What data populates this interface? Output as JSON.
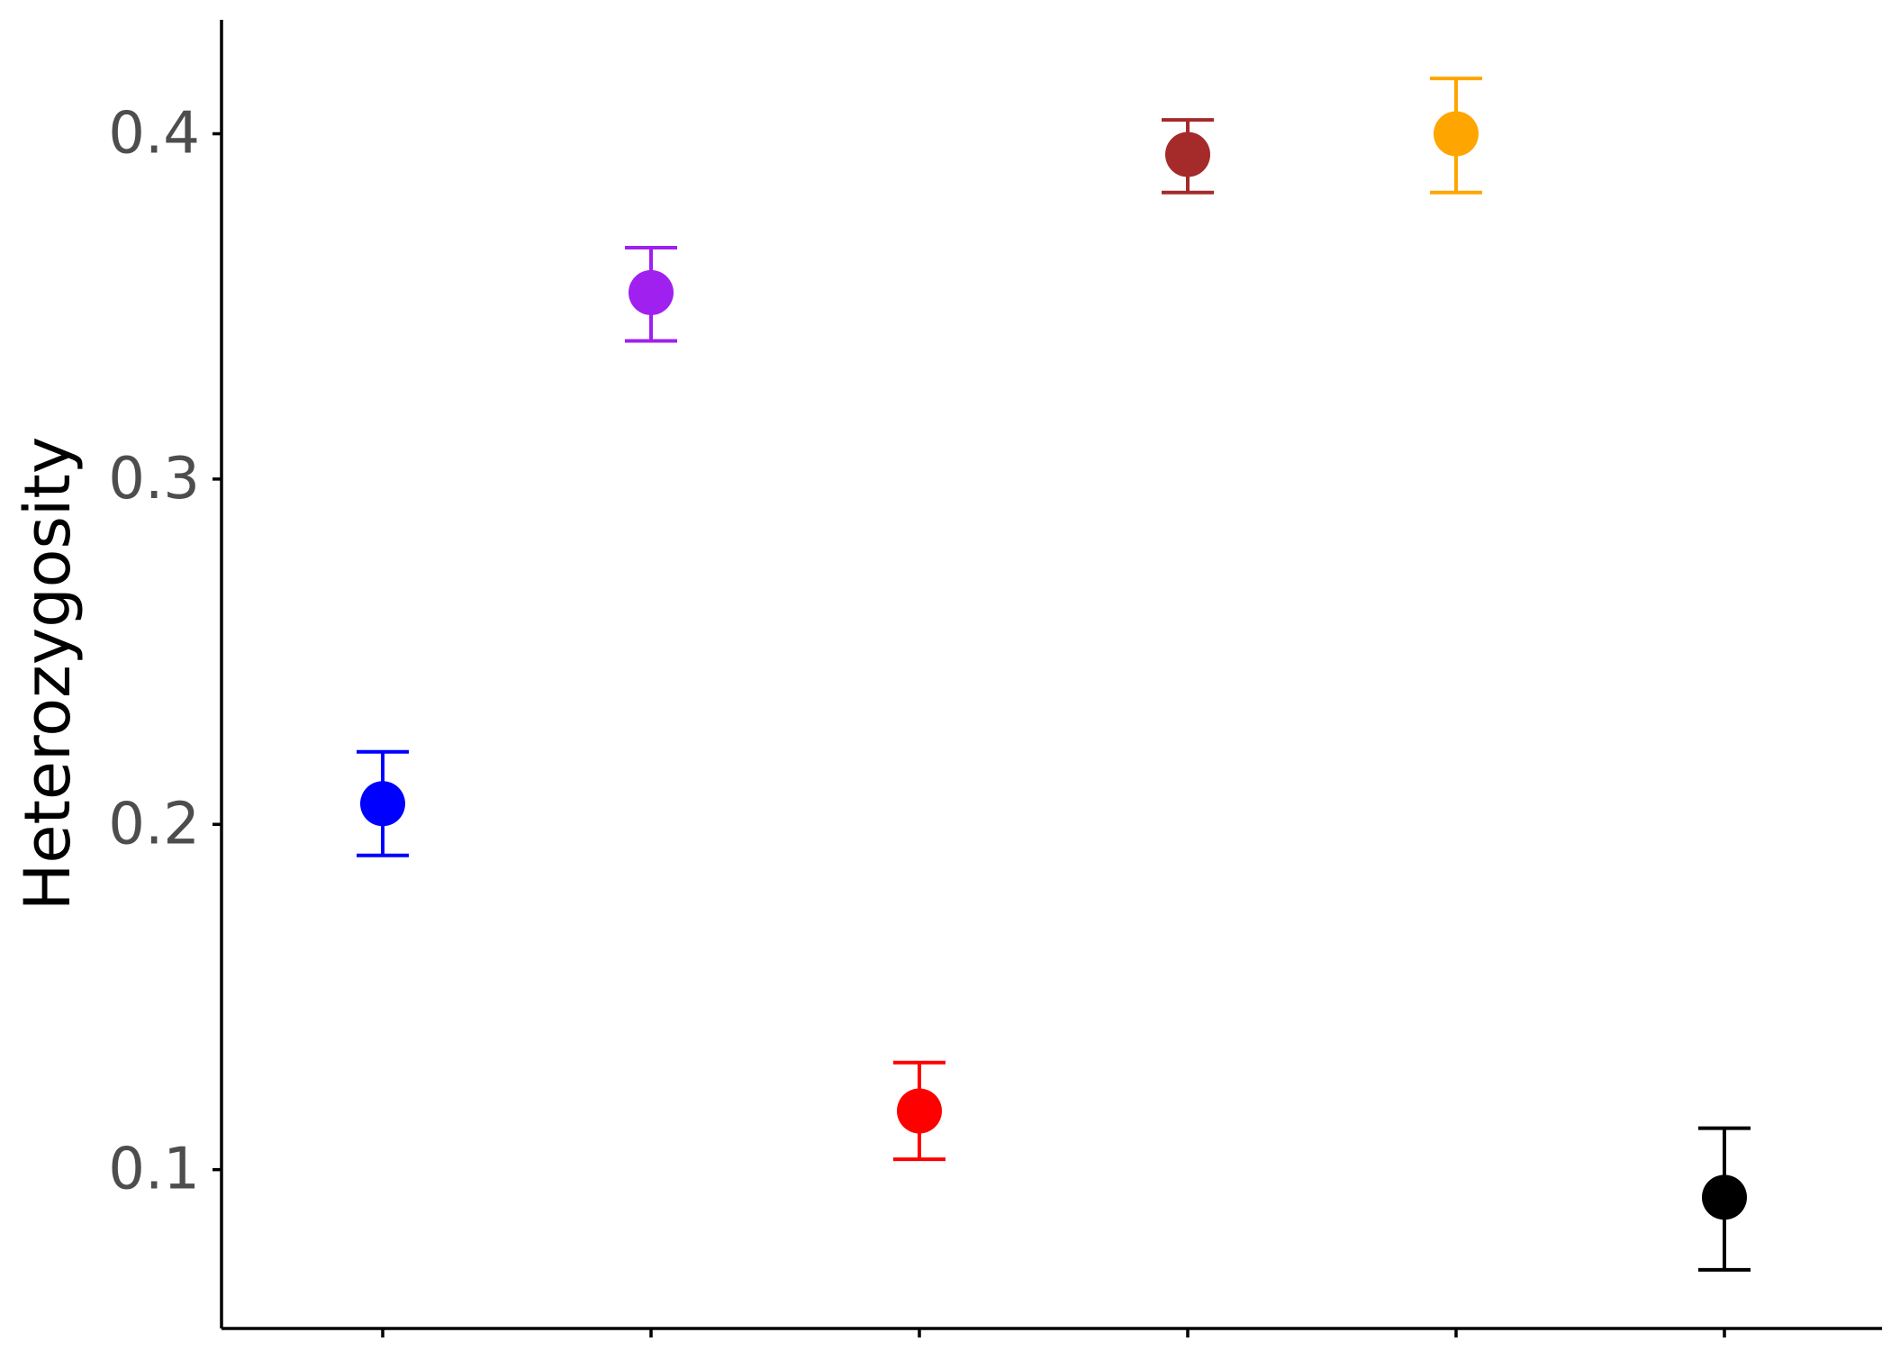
{
  "chart_data": {
    "type": "scatter",
    "title": "",
    "xlabel": "",
    "ylabel": "Heterozygosity",
    "ylim": [
      0.054,
      0.433
    ],
    "yticks": [
      0.1,
      0.2,
      0.3,
      0.4
    ],
    "ytick_labels": [
      "0.1",
      "0.2",
      "0.3",
      "0.4"
    ],
    "grid": false,
    "legend": "none",
    "x_positions": [
      1,
      2,
      3,
      4,
      5,
      6
    ],
    "points": [
      {
        "x": 1,
        "y": 0.206,
        "lower": 0.191,
        "upper": 0.221,
        "color": "#0000ff"
      },
      {
        "x": 2,
        "y": 0.354,
        "lower": 0.34,
        "upper": 0.367,
        "color": "#a020f0"
      },
      {
        "x": 3,
        "y": 0.117,
        "lower": 0.103,
        "upper": 0.131,
        "color": "#ff0000"
      },
      {
        "x": 4,
        "y": 0.394,
        "lower": 0.383,
        "upper": 0.404,
        "color": "#a52a2a"
      },
      {
        "x": 5,
        "y": 0.4,
        "lower": 0.383,
        "upper": 0.416,
        "color": "#ffa500"
      },
      {
        "x": 6,
        "y": 0.092,
        "lower": 0.071,
        "upper": 0.112,
        "color": "#000000"
      }
    ]
  }
}
